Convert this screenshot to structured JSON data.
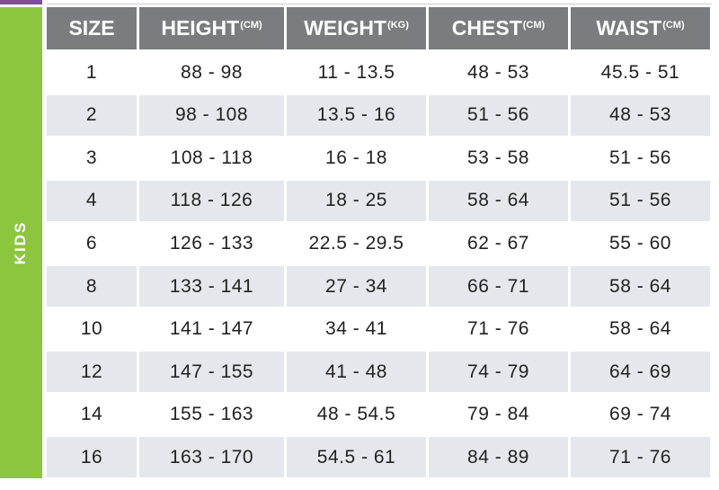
{
  "side_label": "KIDS",
  "table": {
    "header": [
      {
        "label": "SIZE"
      },
      {
        "label": "HEIGHT",
        "unit": "(CM)"
      },
      {
        "label": "WEIGHT",
        "unit": "(KG)"
      },
      {
        "label": "CHEST",
        "unit": "(CM)"
      },
      {
        "label": "WAIST",
        "unit": "(CM)"
      }
    ],
    "rows": [
      [
        "1",
        "88 - 98",
        "11 - 13.5",
        "48 - 53",
        "45.5 - 51"
      ],
      [
        "2",
        "98 - 108",
        "13.5 - 16",
        "51 - 56",
        "48 - 53"
      ],
      [
        "3",
        "108 - 118",
        "16 - 18",
        "53 - 58",
        "51 - 56"
      ],
      [
        "4",
        "118 - 126",
        "18 - 25",
        "58 - 64",
        "51 - 56"
      ],
      [
        "6",
        "126 - 133",
        "22.5 - 29.5",
        "62 - 67",
        "55 - 60"
      ],
      [
        "8",
        "133 - 141",
        "27 - 34",
        "66 - 71",
        "58 - 64"
      ],
      [
        "10",
        "141 - 147",
        "34 - 41",
        "71 - 76",
        "58 - 64"
      ],
      [
        "12",
        "147 - 155",
        "41 - 48",
        "74 - 79",
        "64 - 69"
      ],
      [
        "14",
        "155 - 163",
        "48 - 54.5",
        "79 - 84",
        "69 - 74"
      ],
      [
        "16",
        "163 - 170",
        "54.5 - 61",
        "84 - 89",
        "71 - 76"
      ]
    ]
  }
}
